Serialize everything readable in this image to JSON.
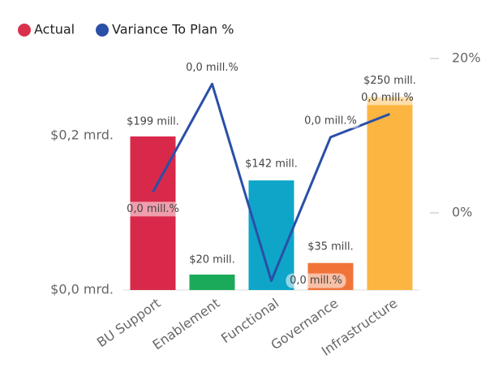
{
  "chart_data": {
    "type": "combo",
    "categories": [
      "BU Support",
      "Enablement",
      "Functional",
      "Governance",
      "Infrastructure"
    ],
    "series": [
      {
        "name": "Actual",
        "type": "bar",
        "color": "#d9304e",
        "colors": [
          "#d9294a",
          "#1aaa5a",
          "#0ea5c9",
          "#f0743a",
          "#fbb540"
        ],
        "values": [
          199000000,
          20000000,
          142000000,
          35000000,
          250000000
        ],
        "value_labels": [
          "$199 mill.",
          "$20 mill.",
          "$142 mill.",
          "$35 mill.",
          "$250 mill."
        ]
      },
      {
        "name": "Variance To Plan %",
        "type": "line",
        "color": "#2a4fa8",
        "axis": "y2",
        "values": [
          2.7,
          16.7,
          -8.8,
          9.8,
          12.8
        ],
        "value_labels": [
          "0,0 mill.%",
          "0,0 mill.%",
          "0,0 mill.%",
          "0,0 mill.%",
          "0,0 mill.%"
        ]
      }
    ],
    "ylim": [
      0,
      300000000
    ],
    "yticks": [
      {
        "value": 0,
        "label": "$0,0 mrd."
      },
      {
        "value": 200000000,
        "label": "$0,2 mrd."
      }
    ],
    "y2lim": [
      -10,
      20
    ],
    "y2ticks": [
      {
        "value": 0,
        "label": "0%"
      },
      {
        "value": 20,
        "label": "20%"
      }
    ],
    "legend": "top-left"
  }
}
